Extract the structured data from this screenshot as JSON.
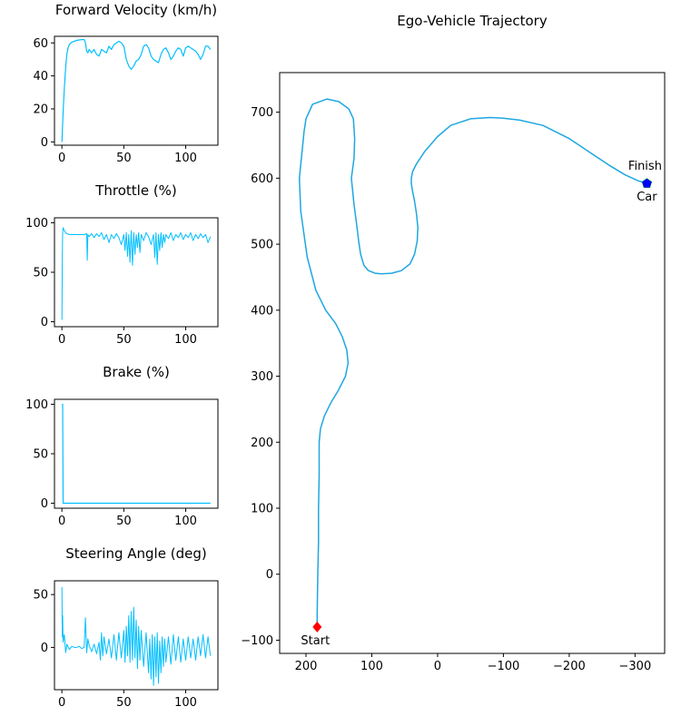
{
  "chart_data": [
    {
      "type": "line",
      "title": "Forward Velocity (km/h)",
      "xlim": [
        -6,
        126
      ],
      "ylim": [
        -2,
        64
      ],
      "xticks": [
        "0",
        "50",
        "100"
      ],
      "xtick_values": [
        0,
        50,
        100
      ],
      "yticks": [
        "0",
        "20",
        "40",
        "60"
      ],
      "ytick_values": [
        0,
        20,
        40,
        60
      ],
      "color": "#00bfff",
      "x": [
        0,
        1,
        2,
        3,
        4,
        5,
        6,
        8,
        10,
        12,
        14,
        16,
        18,
        19,
        20,
        21,
        22,
        24,
        26,
        28,
        30,
        32,
        34,
        36,
        38,
        40,
        42,
        44,
        46,
        48,
        50,
        52,
        54,
        56,
        58,
        60,
        62,
        64,
        66,
        68,
        70,
        72,
        74,
        76,
        78,
        80,
        82,
        84,
        86,
        88,
        90,
        92,
        94,
        96,
        98,
        100,
        102,
        104,
        106,
        108,
        110,
        112,
        114,
        116,
        118,
        120
      ],
      "y": [
        0,
        18,
        33,
        45,
        53,
        57,
        59,
        60.5,
        61,
        61.5,
        61.8,
        62,
        62,
        60,
        55,
        54,
        56,
        54,
        56,
        53,
        52,
        56,
        55,
        54,
        58,
        56,
        59,
        60,
        61,
        60,
        58,
        50,
        46,
        44,
        46,
        49,
        50,
        53,
        58,
        59,
        57,
        52,
        50,
        49,
        48,
        53,
        56,
        57,
        54,
        50,
        52,
        55,
        57,
        56,
        52,
        57,
        58,
        57,
        56,
        55,
        53,
        50,
        53,
        58,
        58,
        56
      ]
    },
    {
      "type": "line",
      "title": "Throttle (%)",
      "xlim": [
        -6,
        126
      ],
      "ylim": [
        -5,
        105
      ],
      "xticks": [
        "0",
        "50",
        "100"
      ],
      "xtick_values": [
        0,
        50,
        100
      ],
      "yticks": [
        "0",
        "50",
        "100"
      ],
      "ytick_values": [
        0,
        50,
        100
      ],
      "color": "#00bfff",
      "x": [
        0,
        0.3,
        0.6,
        1,
        2,
        3,
        4,
        6,
        8,
        10,
        12,
        14,
        16,
        18,
        20,
        20.5,
        21,
        22,
        24,
        26,
        28,
        30,
        32,
        34,
        36,
        38,
        40,
        42,
        44,
        46,
        48,
        50,
        51,
        52,
        53,
        54,
        55,
        56,
        57,
        58,
        59,
        60,
        61,
        62,
        63,
        64,
        66,
        68,
        70,
        72,
        74,
        75,
        76,
        77,
        78,
        79,
        80,
        81,
        82,
        83,
        84,
        86,
        88,
        90,
        92,
        94,
        96,
        98,
        100,
        102,
        104,
        106,
        108,
        110,
        112,
        114,
        116,
        118,
        120
      ],
      "y": [
        2,
        60,
        90,
        95,
        92,
        90,
        89,
        88,
        88,
        88,
        88,
        88,
        88,
        88,
        89,
        62,
        88,
        86,
        89,
        85,
        89,
        86,
        90,
        83,
        88,
        80,
        88,
        84,
        89,
        85,
        78,
        88,
        72,
        90,
        66,
        88,
        60,
        92,
        57,
        90,
        68,
        88,
        75,
        90,
        70,
        88,
        82,
        90,
        86,
        78,
        88,
        65,
        90,
        58,
        88,
        72,
        90,
        75,
        88,
        80,
        88,
        84,
        90,
        82,
        88,
        85,
        90,
        83,
        88,
        85,
        90,
        82,
        88,
        84,
        89,
        85,
        88,
        80,
        86
      ]
    },
    {
      "type": "line",
      "title": "Brake (%)",
      "xlim": [
        -6,
        126
      ],
      "ylim": [
        -5,
        105
      ],
      "xticks": [
        "0",
        "50",
        "100"
      ],
      "xtick_values": [
        0,
        50,
        100
      ],
      "yticks": [
        "0",
        "50",
        "100"
      ],
      "ytick_values": [
        0,
        50,
        100
      ],
      "color": "#00bfff",
      "x": [
        0,
        0.2,
        0.6,
        1,
        120
      ],
      "y": [
        100,
        100,
        100,
        0,
        0
      ]
    },
    {
      "type": "line",
      "title": "Steering Angle (deg)",
      "xlim": [
        -6,
        126
      ],
      "ylim": [
        -40,
        63
      ],
      "xticks": [
        "0",
        "50",
        "100"
      ],
      "xtick_values": [
        0,
        50,
        100
      ],
      "yticks": [
        "0",
        "50"
      ],
      "ytick_values": [
        0,
        50
      ],
      "color": "#00bfff",
      "x": [
        0,
        0.3,
        0.6,
        1,
        2,
        3,
        4,
        6,
        8,
        10,
        12,
        14,
        16,
        18,
        19,
        20,
        21,
        22,
        24,
        26,
        28,
        30,
        31,
        32,
        33,
        34,
        36,
        38,
        40,
        42,
        44,
        46,
        48,
        50,
        51,
        52,
        53,
        54,
        55,
        56,
        57,
        58,
        59,
        60,
        61,
        62,
        63,
        64,
        66,
        68,
        70,
        71,
        72,
        73,
        74,
        75,
        76,
        77,
        78,
        79,
        80,
        81,
        82,
        83,
        84,
        86,
        88,
        90,
        92,
        94,
        96,
        98,
        100,
        102,
        104,
        106,
        108,
        110,
        112,
        114,
        116,
        118,
        120
      ],
      "y": [
        57,
        10,
        30,
        5,
        12,
        -5,
        3,
        -2,
        1,
        0,
        0,
        1,
        -1,
        0,
        28,
        -5,
        8,
        2,
        -4,
        3,
        -6,
        5,
        -12,
        14,
        -8,
        10,
        -6,
        8,
        -10,
        12,
        -12,
        14,
        -10,
        16,
        -14,
        20,
        -8,
        30,
        -14,
        34,
        -12,
        38,
        -10,
        26,
        -20,
        20,
        -12,
        16,
        -18,
        14,
        -24,
        8,
        -30,
        12,
        -36,
        10,
        -28,
        14,
        -34,
        6,
        -24,
        10,
        -18,
        8,
        -14,
        10,
        -16,
        12,
        -12,
        10,
        -14,
        8,
        -12,
        10,
        -10,
        8,
        -12,
        10,
        -8,
        12,
        -10,
        10,
        -8
      ]
    },
    {
      "type": "line",
      "title": "Ego-Vehicle Trajectory",
      "xlim": [
        240,
        -345
      ],
      "ylim": [
        -120,
        760
      ],
      "xticks": [
        "200",
        "100",
        "0",
        "−100",
        "−200",
        "−300"
      ],
      "xtick_values": [
        200,
        100,
        0,
        -100,
        -200,
        -300
      ],
      "yticks": [
        "−100",
        "0",
        "100",
        "200",
        "300",
        "400",
        "500",
        "600",
        "700"
      ],
      "ytick_values": [
        -100,
        0,
        100,
        200,
        300,
        400,
        500,
        600,
        700
      ],
      "color": "#1ea7e1",
      "x": [
        183,
        183,
        182,
        181,
        181,
        180,
        180,
        178,
        172,
        162,
        150,
        140,
        136,
        138,
        145,
        155,
        170,
        185,
        198,
        208,
        210,
        207,
        205,
        203,
        200,
        190,
        168,
        150,
        135,
        128,
        126,
        127,
        131,
        127,
        123,
        120,
        117,
        112,
        105,
        95,
        85,
        70,
        55,
        42,
        35,
        31,
        30,
        32,
        35,
        38,
        40,
        40,
        38,
        32,
        20,
        0,
        -20,
        -50,
        -80,
        -100,
        -125,
        -160,
        -200,
        -230,
        -260,
        -285,
        -305,
        -315,
        -318
      ],
      "y": [
        -80,
        -60,
        0,
        50,
        100,
        150,
        200,
        220,
        240,
        260,
        280,
        300,
        320,
        340,
        360,
        380,
        400,
        430,
        480,
        550,
        600,
        630,
        650,
        670,
        690,
        712,
        720,
        716,
        705,
        690,
        660,
        630,
        600,
        560,
        530,
        505,
        485,
        468,
        460,
        456,
        455,
        456,
        460,
        470,
        485,
        505,
        525,
        545,
        565,
        580,
        592,
        600,
        610,
        622,
        640,
        663,
        680,
        690,
        692,
        691,
        688,
        680,
        660,
        640,
        620,
        605,
        596,
        593,
        592
      ],
      "markers": {
        "start": {
          "x": 183,
          "y": -80,
          "color": "#ff0000",
          "shape": "diamond"
        },
        "finish": {
          "x": -318,
          "y": 592,
          "color": "#00cc00",
          "shape": "pentagon"
        },
        "car": {
          "x": -318,
          "y": 592,
          "color": "#0000ff",
          "shape": "pentagon"
        }
      }
    }
  ],
  "annotations": {
    "start_label": "Start",
    "finish_label": "Finish",
    "car_label": "Car"
  }
}
